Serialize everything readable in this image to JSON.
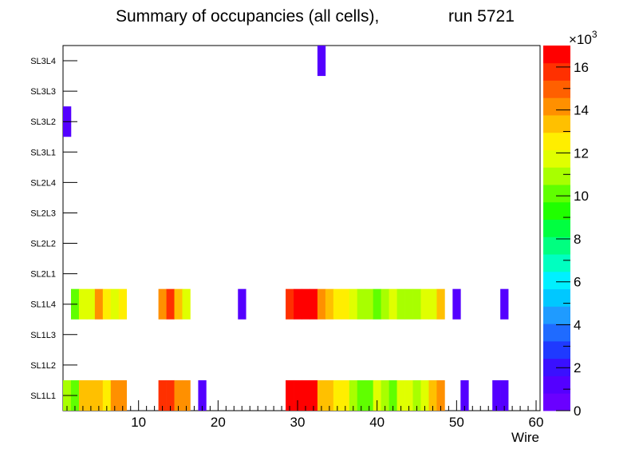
{
  "chart_data": {
    "type": "heatmap",
    "title": "Summary of occupancies (all cells),",
    "run_label": "run 5721",
    "xlabel": "Wire",
    "xlim": [
      0.5,
      60.5
    ],
    "x_ticks": [
      "10",
      "20",
      "30",
      "40",
      "50",
      "60"
    ],
    "y_categories": [
      "SL1L1",
      "SL1L2",
      "SL1L3",
      "SL1L4",
      "SL2L1",
      "SL2L2",
      "SL2L3",
      "SL2L4",
      "SL3L1",
      "SL3L2",
      "SL3L3",
      "SL3L4"
    ],
    "z_multiplier": "×10",
    "z_exponent": "3",
    "z_ticks": [
      "0",
      "2",
      "4",
      "6",
      "8",
      "10",
      "12",
      "14",
      "16"
    ],
    "zlim": [
      0,
      17000
    ],
    "rows": {
      "SL1L1": [
        [
          1,
          11000
        ],
        [
          2,
          10500
        ],
        [
          3,
          13500
        ],
        [
          4,
          13500
        ],
        [
          5,
          13500
        ],
        [
          6,
          12500
        ],
        [
          7,
          14000
        ],
        [
          8,
          14000
        ],
        [
          13,
          16000
        ],
        [
          14,
          16000
        ],
        [
          15,
          14000
        ],
        [
          16,
          14000
        ],
        [
          18,
          1000
        ],
        [
          29,
          16500
        ],
        [
          30,
          17000
        ],
        [
          31,
          17000
        ],
        [
          32,
          17000
        ],
        [
          33,
          13500
        ],
        [
          34,
          13000
        ],
        [
          35,
          12500
        ],
        [
          36,
          12500
        ],
        [
          37,
          11000
        ],
        [
          38,
          10500
        ],
        [
          39,
          10500
        ],
        [
          40,
          12000
        ],
        [
          41,
          11000
        ],
        [
          42,
          10500
        ],
        [
          43,
          11500
        ],
        [
          44,
          12000
        ],
        [
          45,
          11000
        ],
        [
          46,
          12000
        ],
        [
          47,
          13500
        ],
        [
          48,
          14000
        ],
        [
          51,
          1000
        ],
        [
          55,
          1000
        ],
        [
          56,
          1000
        ]
      ],
      "SL1L4": [
        [
          2,
          10500
        ],
        [
          3,
          12000
        ],
        [
          4,
          12000
        ],
        [
          5,
          14000
        ],
        [
          6,
          12500
        ],
        [
          7,
          11500
        ],
        [
          8,
          12500
        ],
        [
          13,
          14000
        ],
        [
          14,
          16000
        ],
        [
          15,
          13000
        ],
        [
          16,
          12000
        ],
        [
          23,
          1000
        ],
        [
          29,
          16000
        ],
        [
          30,
          16500
        ],
        [
          31,
          16500
        ],
        [
          32,
          16500
        ],
        [
          33,
          14000
        ],
        [
          34,
          13000
        ],
        [
          35,
          12500
        ],
        [
          36,
          12500
        ],
        [
          37,
          12000
        ],
        [
          38,
          11000
        ],
        [
          39,
          11000
        ],
        [
          40,
          10500
        ],
        [
          41,
          11000
        ],
        [
          42,
          12000
        ],
        [
          43,
          11000
        ],
        [
          44,
          11000
        ],
        [
          45,
          11000
        ],
        [
          46,
          12000
        ],
        [
          47,
          12000
        ],
        [
          48,
          13500
        ],
        [
          50,
          1000
        ],
        [
          56,
          1000
        ]
      ],
      "SL3L2": [
        [
          1,
          1000
        ]
      ],
      "SL3L4": [
        [
          33,
          1000
        ]
      ]
    }
  }
}
